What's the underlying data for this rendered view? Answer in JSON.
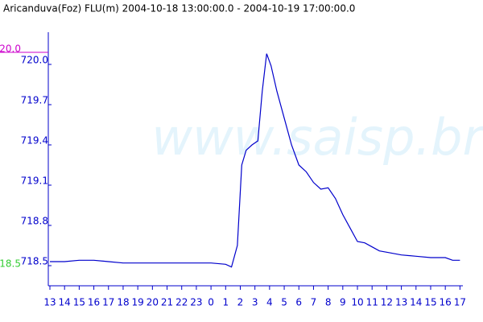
{
  "chart_data": {
    "type": "line",
    "title": "Aricanduva(Foz) FLU(m) 2004-10-18 13:00:00.0 - 2004-10-19 17:00:00.0",
    "watermark": "www.saisp.br",
    "x": [
      13,
      14,
      15,
      16,
      17,
      18,
      20,
      22,
      24,
      25,
      25.4,
      25.8,
      26.1,
      26.4,
      26.8,
      27.2,
      27.5,
      27.8,
      28.1,
      28.5,
      29,
      29.5,
      30,
      30.5,
      31,
      31.5,
      32,
      32.5,
      33,
      33.5,
      34,
      34.5,
      35,
      35.5,
      36,
      37,
      38,
      39,
      40,
      40.5,
      41
    ],
    "series": [
      {
        "name": "FLU(m)",
        "color": "#0000cc",
        "values": [
          718.53,
          718.53,
          718.54,
          718.54,
          718.53,
          718.52,
          718.52,
          718.52,
          718.52,
          718.51,
          718.49,
          718.65,
          719.25,
          719.36,
          719.4,
          719.43,
          719.8,
          720.08,
          719.99,
          719.8,
          719.6,
          719.4,
          719.25,
          719.2,
          719.12,
          719.07,
          719.08,
          719.0,
          718.88,
          718.78,
          718.68,
          718.67,
          718.64,
          718.61,
          718.6,
          718.58,
          718.57,
          718.56,
          718.56,
          718.54,
          718.54
        ]
      }
    ],
    "xlim": [
      13,
      41.2
    ],
    "xticks": [
      13,
      14,
      15,
      16,
      17,
      18,
      19,
      20,
      21,
      22,
      23,
      {
        "value": 24,
        "label": "0"
      },
      {
        "value": 25,
        "label": "1"
      },
      {
        "value": 26,
        "label": "2"
      },
      {
        "value": 27,
        "label": "3"
      },
      {
        "value": 28,
        "label": "4"
      },
      {
        "value": 29,
        "label": "5"
      },
      {
        "value": 30,
        "label": "6"
      },
      {
        "value": 31,
        "label": "7"
      },
      {
        "value": 32,
        "label": "8"
      },
      {
        "value": 33,
        "label": "9"
      },
      {
        "value": 34,
        "label": "10"
      },
      {
        "value": 35,
        "label": "11"
      },
      {
        "value": 36,
        "label": "12"
      },
      {
        "value": 37,
        "label": "13"
      },
      {
        "value": 38,
        "label": "14"
      },
      {
        "value": 39,
        "label": "15"
      },
      {
        "value": 40,
        "label": "16"
      },
      {
        "value": 41,
        "label": "17"
      }
    ],
    "ylim": [
      718.35,
      720.24
    ],
    "yticks": [
      718.5,
      718.8,
      719.1,
      719.4,
      719.7,
      {
        "value": 720,
        "label": "720.0"
      }
    ],
    "max_marker": {
      "label": "20.0",
      "value": 720.09,
      "color": "#cc00cc"
    },
    "min_marker": {
      "label": "18.5",
      "value": 718.5,
      "color": "#33cc33"
    }
  }
}
